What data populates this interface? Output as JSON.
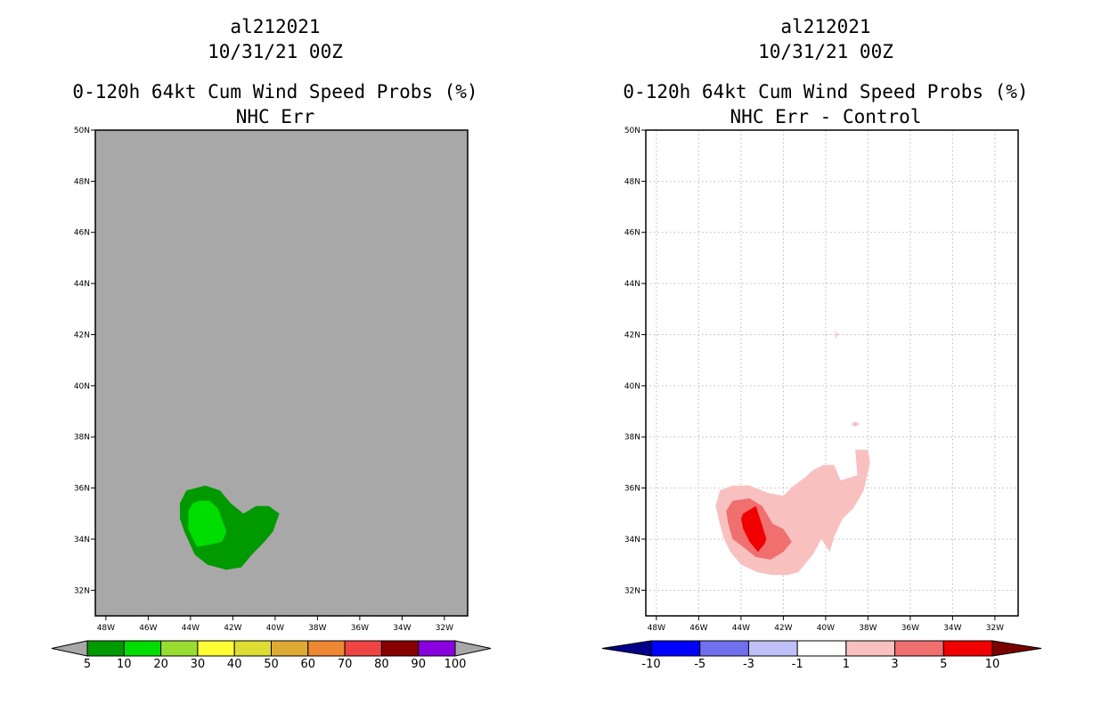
{
  "chart_data": [
    {
      "type": "map-contour",
      "storm_id": "al212021",
      "date": "10/31/21 00Z",
      "title": "0-120h 64kt Cum Wind Speed Probs (%)",
      "subtitle": "NHC Err",
      "background": "#a8a8a8",
      "grid": false,
      "lon_range": [
        -48.5,
        -30.9
      ],
      "lat_range": [
        31.0,
        50.0
      ],
      "x_ticks": [
        "48W",
        "46W",
        "44W",
        "42W",
        "40W",
        "38W",
        "36W",
        "34W",
        "32W"
      ],
      "x_tick_values": [
        -48,
        -46,
        -44,
        -42,
        -40,
        -38,
        -36,
        -34,
        -32
      ],
      "y_ticks": [
        "32N",
        "34N",
        "36N",
        "38N",
        "40N",
        "42N",
        "44N",
        "46N",
        "48N",
        "50N"
      ],
      "y_tick_values": [
        32,
        34,
        36,
        38,
        40,
        42,
        44,
        46,
        48,
        50
      ],
      "colorbar": {
        "labels": [
          "5",
          "10",
          "20",
          "30",
          "40",
          "50",
          "60",
          "70",
          "80",
          "90",
          "100"
        ],
        "colors": [
          "#009900",
          "#00dd00",
          "#99dd33",
          "#ffff33",
          "#dddd33",
          "#ddaa33",
          "#ee8833",
          "#ee4444",
          "#880000",
          "#8800dd"
        ],
        "under_color": "#a8a8a8",
        "over_color": "#a8a8a8"
      },
      "contours": [
        {
          "level": "5-10",
          "color": "#009900",
          "lon": [
            -43.3,
            -42.6,
            -42.1,
            -41.5,
            -40.9,
            -40.3,
            -39.8,
            -40.1,
            -40.5,
            -41.1,
            -41.6,
            -42.3,
            -43.2,
            -43.8,
            -44.3,
            -44.5,
            -44.5,
            -44.2
          ],
          "lat": [
            36.1,
            35.9,
            35.4,
            35.0,
            35.3,
            35.3,
            35.0,
            34.3,
            33.9,
            33.4,
            32.9,
            32.8,
            33.0,
            33.4,
            34.3,
            34.8,
            35.4,
            35.9
          ]
        },
        {
          "level": "10-20",
          "color": "#00dd00",
          "lon": [
            -43.6,
            -43.1,
            -42.7,
            -42.3,
            -42.5,
            -43.0,
            -43.7,
            -44.1,
            -44.1,
            -43.9
          ],
          "lat": [
            35.5,
            35.5,
            35.2,
            34.3,
            33.9,
            33.8,
            33.7,
            34.4,
            35.1,
            35.4
          ]
        }
      ]
    },
    {
      "type": "map-contour",
      "storm_id": "al212021",
      "date": "10/31/21 00Z",
      "title": "0-120h 64kt Cum Wind Speed Probs (%)",
      "subtitle": "NHC Err - Control",
      "background": "#ffffff",
      "grid": true,
      "lon_range": [
        -48.5,
        -30.9
      ],
      "lat_range": [
        31.0,
        50.0
      ],
      "x_ticks": [
        "48W",
        "46W",
        "44W",
        "42W",
        "40W",
        "38W",
        "36W",
        "34W",
        "32W"
      ],
      "x_tick_values": [
        -48,
        -46,
        -44,
        -42,
        -40,
        -38,
        -36,
        -34,
        -32
      ],
      "y_ticks": [
        "32N",
        "34N",
        "36N",
        "38N",
        "40N",
        "42N",
        "44N",
        "46N",
        "48N",
        "50N"
      ],
      "y_tick_values": [
        32,
        34,
        36,
        38,
        40,
        42,
        44,
        46,
        48,
        50
      ],
      "colorbar": {
        "labels": [
          "-10",
          "-5",
          "-3",
          "-1",
          "1",
          "3",
          "5",
          "10"
        ],
        "colors": [
          "#0000ff",
          "#7070ee",
          "#c0c0f8",
          "#ffffff",
          "#f9c0c0",
          "#f06f6f",
          "#f00000"
        ],
        "under_color": "#00008b",
        "over_color": "#7a0000"
      },
      "contours": [
        {
          "level": "1-3",
          "color": "#f9c0c0",
          "lon": [
            -45.0,
            -44.4,
            -43.6,
            -42.7,
            -42.0,
            -41.5,
            -41.0,
            -40.6,
            -40.1,
            -39.6,
            -39.3,
            -38.5,
            -38.6,
            -38.0,
            -37.9,
            -38.2,
            -38.7,
            -39.2,
            -39.6,
            -39.8,
            -40.2,
            -40.6,
            -40.9,
            -41.3,
            -41.8,
            -42.5,
            -43.2,
            -44.0,
            -44.5,
            -44.8,
            -45.0,
            -45.2
          ],
          "lat": [
            35.9,
            36.1,
            36.1,
            35.8,
            35.7,
            36.1,
            36.4,
            36.7,
            36.9,
            36.9,
            36.3,
            36.5,
            37.5,
            37.5,
            37.0,
            35.9,
            35.2,
            34.8,
            34.1,
            33.5,
            34.0,
            33.4,
            33.1,
            32.7,
            32.6,
            32.6,
            32.7,
            33.0,
            33.5,
            34.0,
            34.6,
            35.3
          ]
        },
        {
          "level": "3-5",
          "color": "#f06f6f",
          "lon": [
            -44.4,
            -43.6,
            -43.0,
            -42.5,
            -42.0,
            -41.6,
            -42.0,
            -42.6,
            -43.3,
            -43.9,
            -44.4,
            -44.6,
            -44.7
          ],
          "lat": [
            35.5,
            35.6,
            35.3,
            34.6,
            34.4,
            33.9,
            33.5,
            33.2,
            33.3,
            33.7,
            34.0,
            34.6,
            35.1
          ]
        },
        {
          "level": "5-10",
          "color": "#f00000",
          "lon": [
            -43.9,
            -43.3,
            -43.1,
            -42.8,
            -42.9,
            -43.2,
            -43.6,
            -43.9,
            -44.0
          ],
          "lat": [
            35.0,
            35.3,
            34.8,
            34.0,
            33.8,
            33.5,
            33.9,
            34.4,
            34.8
          ]
        },
        {
          "level": "1-3",
          "color": "#f9c0c0",
          "lon": [
            -39.6,
            -39.4,
            -39.6,
            -39.5
          ],
          "lat": [
            42.2,
            42.0,
            41.8,
            42.0
          ]
        },
        {
          "level": "1-3",
          "color": "#f9c0c0",
          "lon": [
            -38.6,
            -38.4,
            -38.6,
            -38.8
          ],
          "lat": [
            38.6,
            38.5,
            38.4,
            38.5
          ]
        }
      ]
    }
  ]
}
